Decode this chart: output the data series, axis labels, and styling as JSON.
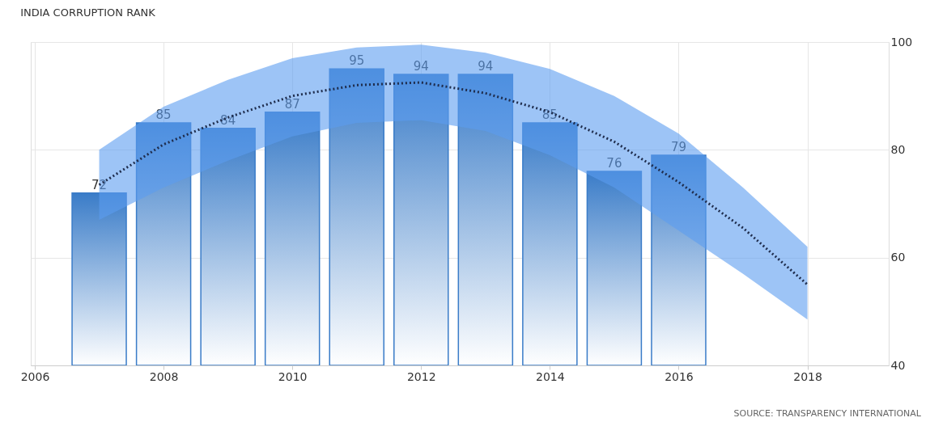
{
  "chart_data": {
    "type": "bar",
    "title": "INDIA CORRUPTION RANK",
    "x": [
      2007,
      2008,
      2009,
      2010,
      2011,
      2012,
      2013,
      2014,
      2015,
      2016
    ],
    "series": [
      {
        "color": "#3a7cc8",
        "values": [
          72,
          85,
          84,
          87,
          95,
          94,
          94,
          85,
          76,
          79
        ],
        "value_labels": [
          "72",
          "85",
          "84",
          "87",
          "95",
          "94",
          "94",
          "85",
          "76",
          "79"
        ]
      },
      {
        "type": "line",
        "color": "#1f2d4d",
        "line_style": "dotted",
        "x": [
          2007,
          2008,
          2009,
          2010,
          2011,
          2012,
          2013,
          2014,
          2015,
          2016,
          2017,
          2018
        ],
        "values": [
          73.5,
          81,
          86,
          90,
          92,
          92.5,
          90.5,
          87,
          81.5,
          74,
          65.5,
          55
        ],
        "lower": [
          67,
          73,
          78,
          82.5,
          85,
          85.5,
          83.5,
          79,
          73,
          65,
          57,
          48.5
        ],
        "upper": [
          80,
          88,
          93,
          97,
          99,
          99.5,
          98,
          95,
          90,
          83,
          73,
          62
        ]
      }
    ],
    "xlim": [
      2006,
      2019.2
    ],
    "xticks": [
      2006,
      2008,
      2010,
      2012,
      2014,
      2016,
      2018
    ],
    "ylim": [
      40,
      100
    ],
    "yticks": [
      40,
      60,
      80,
      100
    ],
    "grid": true,
    "annotations": [
      "SOURCE: TRANSPARENCY INTERNATIONAL"
    ]
  }
}
